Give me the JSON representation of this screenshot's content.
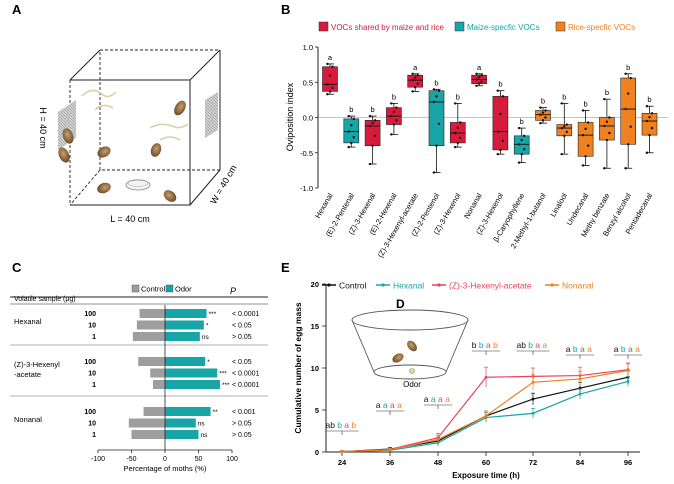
{
  "panel_a": {
    "letter": "A",
    "height_label": "H = 40 cm",
    "length_label": "L = 40 cm",
    "width_label": "W = 40 cm"
  },
  "panel_d": {
    "letter": "D",
    "odor_label": "Odor"
  },
  "chart_data": [
    {
      "panel": "B",
      "type": "box",
      "ylabel": "Oviposition index",
      "ylim": [
        -1.0,
        1.0
      ],
      "yticks": [
        "-1.0",
        "-0.5",
        "0.0",
        "0.5",
        "1.0"
      ],
      "legend": [
        {
          "name": "VOCs shared by maize and rice",
          "color": "#d81b3c",
          "text_color": "#d81b3c"
        },
        {
          "name": "Maize-specfic VOCs",
          "color": "#17a5a8",
          "text_color": "#17a5a8"
        },
        {
          "name": "Rice-specfic  VOCs",
          "color": "#f08020",
          "text_color": "#f08020"
        }
      ],
      "categories": [
        "Hexanal",
        "(E)-2-Pentenal",
        "(Z)-3-Hexenal",
        "(E)-2-Hexenal",
        "(Z)-3-Hexenyl-acetate",
        "(Z)-2-Pentenol",
        "(Z)-3-Hexenol",
        "Nonanal",
        "(Z)-3-Hexenol",
        "β-Caryophyllene",
        "2-Methyl-1-butanol",
        "Linalool",
        "Undecanal",
        "Methy benzate",
        "Benzyl alcohol",
        "Pentadecanal"
      ],
      "groups": [
        "shared",
        "maize",
        "shared",
        "shared",
        "shared",
        "maize",
        "shared",
        "shared",
        "shared",
        "maize",
        "rice",
        "rice",
        "rice",
        "rice",
        "rice",
        "rice"
      ],
      "box_stats": [
        {
          "min": 0.33,
          "q1": 0.37,
          "median": 0.47,
          "q3": 0.72,
          "max": 0.76
        },
        {
          "min": -0.42,
          "q1": -0.36,
          "median": -0.2,
          "q3": -0.02,
          "max": 0.02
        },
        {
          "min": -0.66,
          "q1": -0.4,
          "median": -0.12,
          "q3": -0.04,
          "max": 0.02
        },
        {
          "min": -0.24,
          "q1": -0.1,
          "median": 0.02,
          "q3": 0.14,
          "max": 0.2
        },
        {
          "min": 0.37,
          "q1": 0.43,
          "median": 0.53,
          "q3": 0.6,
          "max": 0.62
        },
        {
          "min": -0.78,
          "q1": -0.4,
          "median": 0.22,
          "q3": 0.38,
          "max": 0.4
        },
        {
          "min": -0.42,
          "q1": -0.36,
          "median": -0.22,
          "q3": -0.07,
          "max": 0.2
        },
        {
          "min": 0.45,
          "q1": 0.48,
          "median": 0.54,
          "q3": 0.6,
          "max": 0.62
        },
        {
          "min": -0.52,
          "q1": -0.46,
          "median": -0.2,
          "q3": 0.3,
          "max": 0.38
        },
        {
          "min": -0.64,
          "q1": -0.52,
          "median": -0.38,
          "q3": -0.26,
          "max": -0.15
        },
        {
          "min": -0.08,
          "q1": -0.04,
          "median": 0.04,
          "q3": 0.1,
          "max": 0.14
        },
        {
          "min": -0.52,
          "q1": -0.26,
          "median": -0.15,
          "q3": -0.1,
          "max": 0.2
        },
        {
          "min": -0.68,
          "q1": -0.55,
          "median": -0.25,
          "q3": -0.07,
          "max": 0.1
        },
        {
          "min": -0.72,
          "q1": -0.32,
          "median": -0.12,
          "q3": 0.0,
          "max": 0.26
        },
        {
          "min": -0.72,
          "q1": -0.38,
          "median": 0.12,
          "q3": 0.56,
          "max": 0.62
        },
        {
          "min": -0.5,
          "q1": -0.25,
          "median": -0.05,
          "q3": 0.06,
          "max": 0.16
        }
      ],
      "letters": [
        "a",
        "b",
        "b",
        "b",
        "a",
        "b",
        "b",
        "a",
        "b",
        "b",
        "b",
        "b",
        "b",
        "b",
        "b",
        "b"
      ],
      "grid": false
    },
    {
      "panel": "C",
      "type": "bar",
      "orientation": "horizontal",
      "header_sample": "Volatile sample (μg)",
      "header_p": "P",
      "xlabel": "Percentage of  moths  (%)",
      "xlim": [
        -100,
        100
      ],
      "xticks": [
        "-100",
        "-50",
        "0",
        "50",
        "100"
      ],
      "legend": [
        {
          "name": "Control",
          "color": "#9e9e9e"
        },
        {
          "name": "Odor",
          "color": "#17a5a8"
        }
      ],
      "groups": [
        {
          "name": "Hexanal",
          "doses": [
            "100",
            "10",
            "1"
          ],
          "control": [
            -38,
            -42,
            -48
          ],
          "odor": [
            62,
            58,
            52
          ],
          "sig": [
            "***",
            "*",
            "ns"
          ],
          "p": [
            "< 0.0001",
            "< 0.05",
            "> 0.05"
          ]
        },
        {
          "name": "(Z)-3-Hexenyl\n-acetate",
          "name_lines": [
            "(Z)-3-Hexenyl",
            "-acetate"
          ],
          "doses": [
            "100",
            "10",
            "1"
          ],
          "control": [
            -40,
            -22,
            -18
          ],
          "odor": [
            60,
            78,
            82
          ],
          "sig": [
            "*",
            "***",
            "***"
          ],
          "p": [
            "< 0.05",
            "< 0.0001",
            "< 0.0001"
          ]
        },
        {
          "name": "Nonanal",
          "doses": [
            "100",
            "10",
            "1"
          ],
          "control": [
            -32,
            -54,
            -50
          ],
          "odor": [
            68,
            46,
            50
          ],
          "sig": [
            "**",
            "ns",
            "ns"
          ],
          "p": [
            "< 0.001",
            "> 0.05",
            "> 0.05"
          ]
        }
      ]
    },
    {
      "panel": "E",
      "type": "line",
      "xlabel": "Exposure time  (h)",
      "ylabel": "Cumulative number of egg mass",
      "x": [
        24,
        36,
        48,
        60,
        72,
        84,
        96
      ],
      "ylim": [
        0,
        20
      ],
      "yticks": [
        "0",
        "5",
        "10",
        "15",
        "20"
      ],
      "series": [
        {
          "name": "Control",
          "color": "#111111",
          "values": [
            0.05,
            0.35,
            1.3,
            4.3,
            6.3,
            7.6,
            8.9
          ],
          "errors": [
            0.1,
            0.2,
            0.4,
            0.6,
            0.7,
            0.7,
            0.8
          ]
        },
        {
          "name": "Hexanal",
          "color": "#17a5a8",
          "values": [
            0.05,
            0.2,
            1.1,
            4.1,
            4.6,
            6.9,
            8.4
          ],
          "errors": [
            0.1,
            0.2,
            0.4,
            0.6,
            0.6,
            0.6,
            0.6
          ]
        },
        {
          "name": "(Z)-3-Hexenyl-acetate",
          "color": "#e8435a",
          "values": [
            0.05,
            0.3,
            1.7,
            8.9,
            9.0,
            9.1,
            9.8
          ],
          "errors": [
            0.1,
            0.2,
            0.5,
            1.2,
            1.0,
            1.0,
            0.8
          ]
        },
        {
          "name": "Nonanal",
          "color": "#f08020",
          "values": [
            0.05,
            0.25,
            1.5,
            4.3,
            8.3,
            8.7,
            9.7
          ],
          "errors": [
            0.1,
            0.2,
            0.5,
            0.6,
            0.9,
            0.9,
            0.8
          ]
        }
      ],
      "sig_letters": [
        [
          "ab",
          "b",
          "a",
          "b"
        ],
        [
          "a",
          "a",
          "a",
          "a"
        ],
        [
          "a",
          "a",
          "a",
          "a"
        ],
        [
          "b",
          "b",
          "a",
          "b"
        ],
        [
          "ab",
          "b",
          "a",
          "a"
        ],
        [
          "a",
          "b",
          "a",
          "a"
        ],
        [
          "a",
          "b",
          "a",
          "a"
        ]
      ]
    }
  ]
}
